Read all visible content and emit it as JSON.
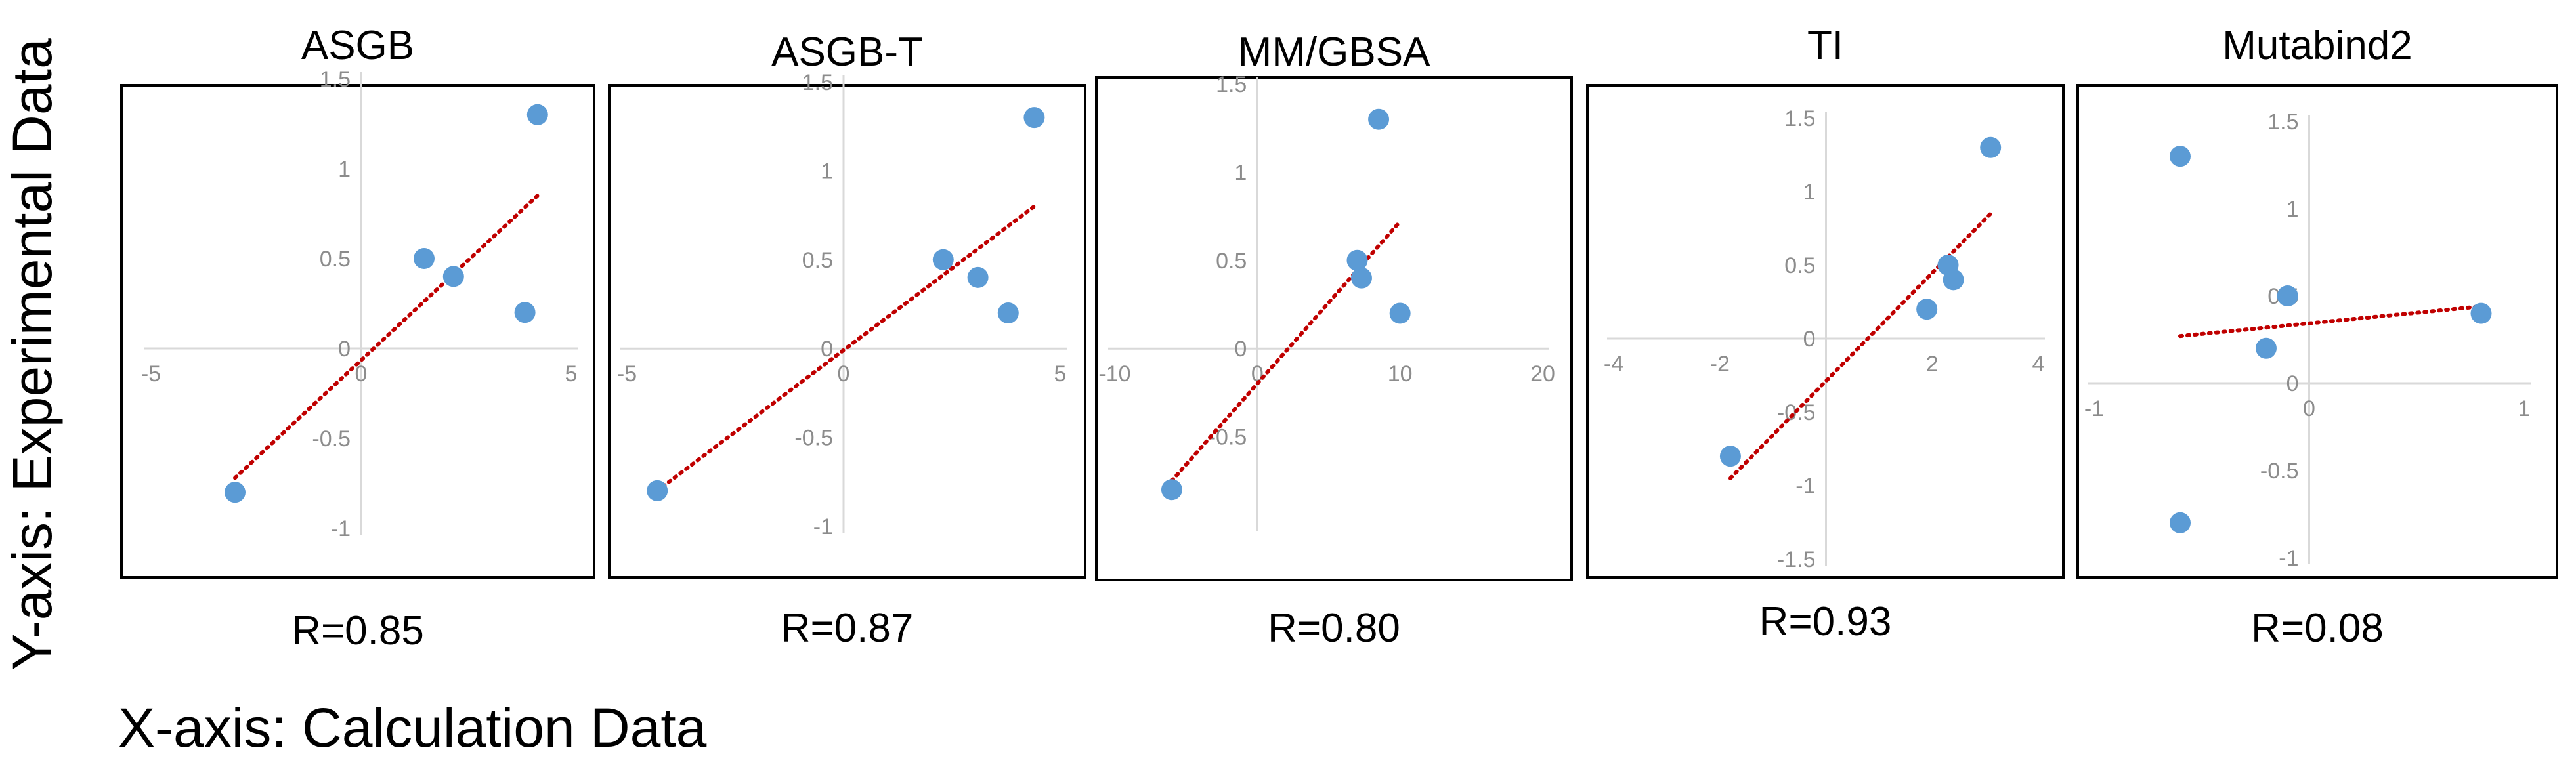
{
  "figure": {
    "y_axis_label": "Y-axis: Experimental Data",
    "x_axis_label": "X-axis: Calculation Data"
  },
  "colors": {
    "point": "#5b9bd5",
    "trendline": "#c00000",
    "axis": "#d9d9d9",
    "tick_text": "#8c8c8c",
    "frame": "#000000"
  },
  "chart_data": [
    {
      "type": "scatter",
      "title": "ASGB",
      "caption": "R=0.85",
      "x": [
        -3,
        1.5,
        2.2,
        3.9,
        4.2
      ],
      "y": [
        -0.8,
        0.5,
        0.4,
        0.2,
        1.3
      ],
      "trendline": {
        "x0": -3,
        "y0": -0.72,
        "x1": 4.2,
        "y1": 0.85
      },
      "xlim": [
        -5,
        5
      ],
      "ylim": [
        -1,
        1.5
      ],
      "xticks": [
        -5,
        0,
        5
      ],
      "yticks": [
        -1,
        -0.5,
        0,
        0.5,
        1,
        1.5
      ],
      "xtick_labels": [
        "-5",
        "0",
        "5"
      ],
      "ytick_labels": [
        "-1",
        "-0.5",
        "0",
        "0.5",
        "1",
        "1.5"
      ]
    },
    {
      "type": "scatter",
      "title": "ASGB-T",
      "caption": "R=0.87",
      "x": [
        -4.3,
        2.3,
        3.1,
        3.8,
        4.4
      ],
      "y": [
        -0.8,
        0.5,
        0.4,
        0.2,
        1.3
      ],
      "trendline": {
        "x0": -4.3,
        "y0": -0.8,
        "x1": 4.4,
        "y1": 0.8
      },
      "xlim": [
        -5,
        5
      ],
      "ylim": [
        -1,
        1.5
      ],
      "xticks": [
        -5,
        0,
        5
      ],
      "yticks": [
        -1,
        -0.5,
        0,
        0.5,
        1,
        1.5
      ],
      "xtick_labels": [
        "-5",
        "0",
        "5"
      ],
      "ytick_labels": [
        "-1",
        "-0.5",
        "0",
        "0.5",
        "1",
        "1.5"
      ]
    },
    {
      "type": "scatter",
      "title": "MM/GBSA",
      "caption": "R=0.80",
      "x": [
        -6,
        7,
        7.3,
        8.5,
        10
      ],
      "y": [
        -0.8,
        0.5,
        0.4,
        1.3,
        0.2
      ],
      "trendline": {
        "x0": -6,
        "y0": -0.75,
        "x1": 10,
        "y1": 0.72
      },
      "xlim": [
        -10,
        20
      ],
      "ylim": [
        -1,
        1.5
      ],
      "xticks": [
        -10,
        0,
        10,
        20
      ],
      "yticks": [
        -0.5,
        0,
        0.5,
        1,
        1.5
      ],
      "xtick_labels": [
        "-10",
        "0",
        "10",
        "20"
      ],
      "ytick_labels": [
        "-0.5",
        "0",
        "0.5",
        "1",
        "1.5"
      ]
    },
    {
      "type": "scatter",
      "title": "TI",
      "caption": "R=0.93",
      "x": [
        -1.8,
        1.9,
        2.3,
        2.4,
        3.1
      ],
      "y": [
        -0.8,
        0.2,
        0.5,
        0.4,
        1.3
      ],
      "trendline": {
        "x0": -1.8,
        "y0": -0.95,
        "x1": 3.1,
        "y1": 0.85
      },
      "xlim": [
        -4,
        4
      ],
      "ylim": [
        -1.5,
        1.5
      ],
      "xticks": [
        -4,
        -2,
        2,
        4
      ],
      "yticks": [
        -1.5,
        -1,
        -0.5,
        0,
        0.5,
        1,
        1.5
      ],
      "xtick_labels": [
        "-4",
        "-2",
        "2",
        "4"
      ],
      "ytick_labels": [
        "-1.5",
        "-1",
        "-0.5",
        "0",
        "0.5",
        "1",
        "1.5"
      ]
    },
    {
      "type": "scatter",
      "title": "Mutabind2",
      "caption": "R=0.08",
      "x": [
        -0.6,
        -0.6,
        -0.1,
        -0.2,
        0.8
      ],
      "y": [
        1.3,
        -0.8,
        0.5,
        0.2,
        0.4
      ],
      "trendline": {
        "x0": -0.6,
        "y0": 0.27,
        "x1": 0.8,
        "y1": 0.44
      },
      "xlim": [
        -1,
        1
      ],
      "ylim": [
        -1,
        1.5
      ],
      "xticks": [
        -1,
        0,
        1
      ],
      "yticks": [
        -1,
        -0.5,
        0,
        0.5,
        1,
        1.5
      ],
      "xtick_labels": [
        "-1",
        "0",
        "1"
      ],
      "ytick_labels": [
        "-1",
        "-0.5",
        "0",
        "0.5",
        "1",
        "1.5"
      ]
    }
  ]
}
